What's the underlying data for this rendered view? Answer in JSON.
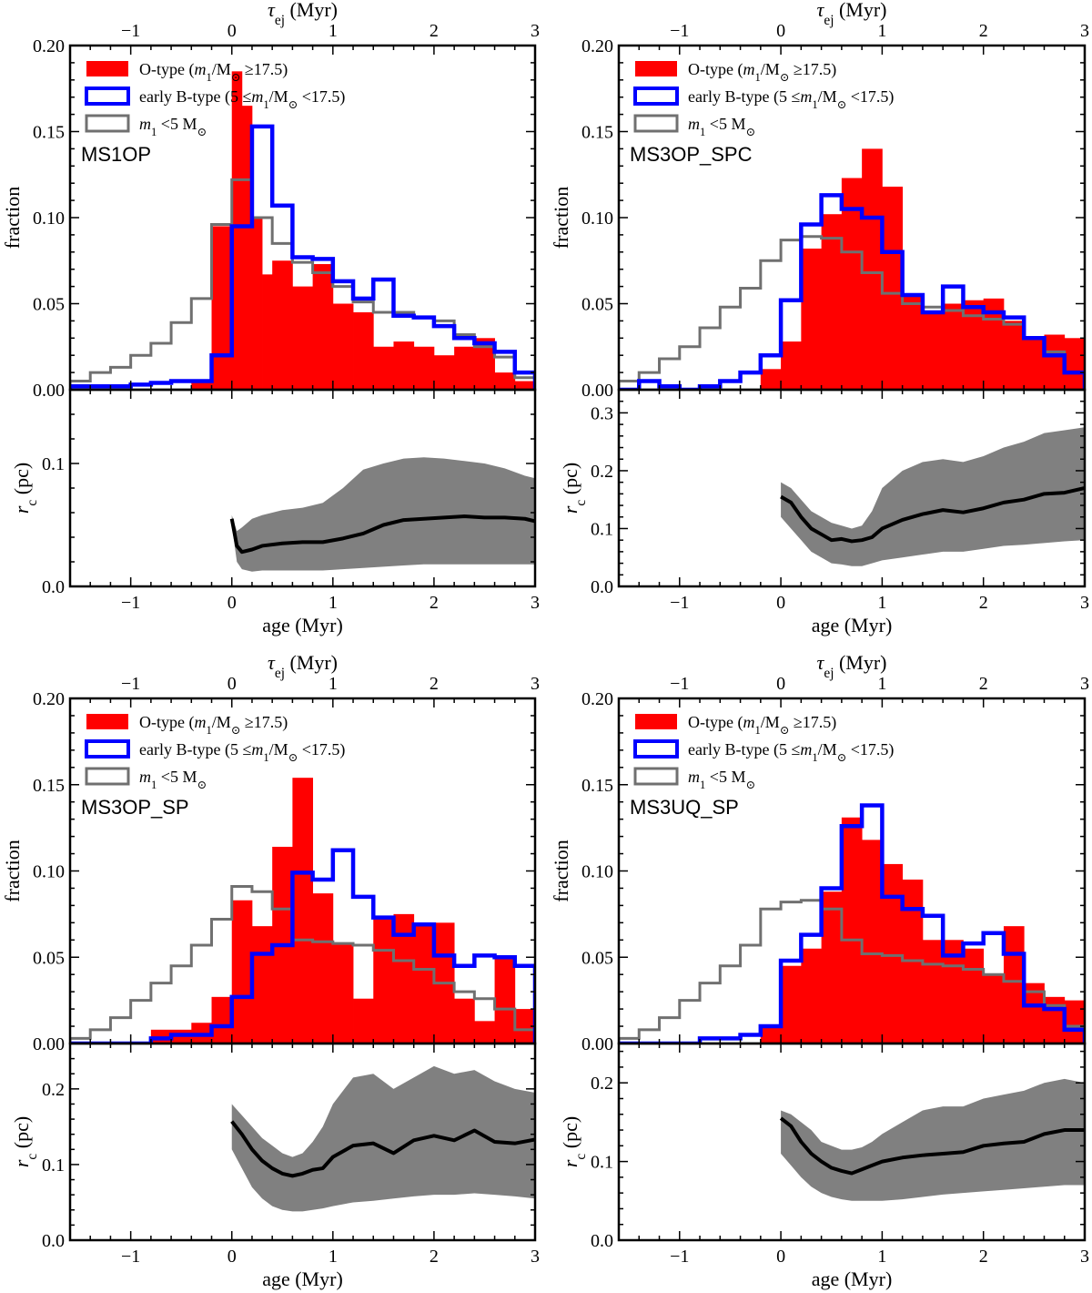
{
  "colors": {
    "o_type": "#ff0000",
    "early_b": "#0000ff",
    "low_mass": "#707070",
    "band": "#808080",
    "median": "#000000"
  },
  "legend": [
    {
      "key": "o_type",
      "label": "O-type (m₁/M⊙ ≥17.5)",
      "swatch": "filled"
    },
    {
      "key": "early_b",
      "label": "early B-type (5 ≤m₁/M⊙ <17.5)",
      "swatch": "outline"
    },
    {
      "key": "low_mass",
      "label": "m₁ <5 M⊙",
      "swatch": "outline"
    }
  ],
  "chart_data": [
    {
      "type": "step-histogram",
      "panel": "MS1OP",
      "title": "MS1OP",
      "xlabel": "age (Myr)",
      "x2label": "τej (Myr)",
      "ylabel": "fraction",
      "xlim": [
        -1.6,
        3.0
      ],
      "xticks": [
        -1,
        0,
        1,
        2,
        3
      ],
      "ylim": [
        0,
        0.2
      ],
      "yticks": [
        "0.00",
        "0.05",
        "0.10",
        "0.15",
        "0.20"
      ],
      "bin_edges": [
        -1.6,
        -1.4,
        -1.2,
        -1.0,
        -0.8,
        -0.6,
        -0.4,
        -0.2,
        0.0,
        0.2,
        0.4,
        0.6,
        0.8,
        1.0,
        1.2,
        1.4,
        1.6,
        1.8,
        2.0,
        2.2,
        2.4,
        2.6,
        2.8,
        3.0
      ],
      "o_edges": [
        -0.4,
        -0.2,
        0.0,
        0.1,
        0.2,
        0.3,
        0.4,
        0.6,
        0.8,
        1.0,
        1.2,
        1.4,
        1.6,
        1.8,
        2.0,
        2.2,
        2.4,
        2.6,
        2.8,
        3.0
      ],
      "series": [
        {
          "name": "O-type",
          "values": [
            0.005,
            0.095,
            0.185,
            0.165,
            0.1,
            0.067,
            0.075,
            0.06,
            0.073,
            0.05,
            0.045,
            0.025,
            0.028,
            0.025,
            0.02,
            0.025,
            0.03,
            0.01,
            0.005
          ]
        },
        {
          "name": "early B-type",
          "values": [
            0.002,
            0.002,
            0.002,
            0.003,
            0.004,
            0.005,
            0.005,
            0.02,
            0.095,
            0.153,
            0.107,
            0.077,
            0.076,
            0.063,
            0.053,
            0.064,
            0.043,
            0.042,
            0.037,
            0.03,
            0.027,
            0.022,
            0.01
          ]
        },
        {
          "name": "low mass",
          "values": [
            0.005,
            0.01,
            0.013,
            0.02,
            0.027,
            0.039,
            0.053,
            0.096,
            0.122,
            0.1,
            0.085,
            0.074,
            0.068,
            0.06,
            0.051,
            0.045,
            0.045,
            0.042,
            0.04,
            0.032,
            0.025,
            0.019,
            0.007
          ]
        }
      ],
      "rc": {
        "ylabel": "rc (pc)",
        "ylim": [
          0,
          0.16
        ],
        "yticks": [
          "0.0",
          "0.1"
        ],
        "x": [
          0.0,
          0.05,
          0.1,
          0.2,
          0.3,
          0.5,
          0.7,
          0.9,
          1.1,
          1.3,
          1.5,
          1.7,
          1.9,
          2.1,
          2.3,
          2.5,
          2.7,
          2.9,
          3.0
        ],
        "median": [
          0.055,
          0.033,
          0.028,
          0.03,
          0.033,
          0.035,
          0.036,
          0.036,
          0.039,
          0.043,
          0.05,
          0.054,
          0.055,
          0.056,
          0.057,
          0.056,
          0.056,
          0.055,
          0.053
        ],
        "upper": [
          0.058,
          0.045,
          0.048,
          0.055,
          0.058,
          0.062,
          0.064,
          0.068,
          0.08,
          0.095,
          0.1,
          0.104,
          0.105,
          0.104,
          0.102,
          0.1,
          0.096,
          0.09,
          0.088
        ],
        "lower": [
          0.05,
          0.02,
          0.014,
          0.012,
          0.013,
          0.013,
          0.013,
          0.013,
          0.014,
          0.015,
          0.016,
          0.017,
          0.018,
          0.018,
          0.018,
          0.018,
          0.018,
          0.018,
          0.018
        ]
      }
    },
    {
      "type": "step-histogram",
      "panel": "MS3OP_SPC",
      "title": "MS3OP_SPC",
      "xlabel": "age (Myr)",
      "x2label": "τej (Myr)",
      "ylabel": "fraction",
      "xlim": [
        -1.6,
        3.0
      ],
      "xticks": [
        -1,
        0,
        1,
        2,
        3
      ],
      "ylim": [
        0,
        0.2
      ],
      "yticks": [
        "0.00",
        "0.05",
        "0.10",
        "0.15",
        "0.20"
      ],
      "bin_edges": [
        -1.6,
        -1.4,
        -1.2,
        -1.0,
        -0.8,
        -0.6,
        -0.4,
        -0.2,
        0.0,
        0.2,
        0.4,
        0.6,
        0.8,
        1.0,
        1.2,
        1.4,
        1.6,
        1.8,
        2.0,
        2.2,
        2.4,
        2.6,
        2.8,
        3.0
      ],
      "o_edges": [
        -0.2,
        0.0,
        0.2,
        0.4,
        0.6,
        0.8,
        1.0,
        1.2,
        1.4,
        1.6,
        1.8,
        2.0,
        2.2,
        2.4,
        2.6,
        2.8,
        3.0
      ],
      "series": [
        {
          "name": "O-type",
          "values": [
            0.012,
            0.028,
            0.082,
            0.102,
            0.123,
            0.14,
            0.118,
            0.055,
            0.045,
            0.05,
            0.052,
            0.053,
            0.04,
            0.03,
            0.032,
            0.03
          ]
        },
        {
          "name": "early B-type",
          "values": [
            0.0,
            0.005,
            0.002,
            0.0,
            0.002,
            0.005,
            0.01,
            0.02,
            0.052,
            0.096,
            0.113,
            0.105,
            0.1,
            0.08,
            0.055,
            0.045,
            0.06,
            0.048,
            0.045,
            0.042,
            0.03,
            0.02,
            0.01
          ]
        },
        {
          "name": "low mass",
          "values": [
            0.005,
            0.01,
            0.018,
            0.025,
            0.036,
            0.048,
            0.059,
            0.075,
            0.087,
            0.089,
            0.088,
            0.08,
            0.068,
            0.056,
            0.05,
            0.048,
            0.046,
            0.043,
            0.041,
            0.038,
            0.03,
            0.022,
            0.01
          ]
        }
      ],
      "rc": {
        "ylabel": "rc (pc)",
        "ylim": [
          0,
          0.34
        ],
        "yticks": [
          "0.0",
          "0.1",
          "0.2",
          "0.3"
        ],
        "x": [
          0.0,
          0.1,
          0.2,
          0.3,
          0.4,
          0.5,
          0.6,
          0.7,
          0.8,
          0.9,
          1.0,
          1.2,
          1.4,
          1.6,
          1.8,
          2.0,
          2.2,
          2.4,
          2.6,
          2.8,
          3.0
        ],
        "median": [
          0.155,
          0.145,
          0.12,
          0.1,
          0.09,
          0.08,
          0.082,
          0.078,
          0.08,
          0.085,
          0.1,
          0.115,
          0.125,
          0.132,
          0.128,
          0.135,
          0.145,
          0.15,
          0.16,
          0.162,
          0.17
        ],
        "upper": [
          0.18,
          0.17,
          0.15,
          0.13,
          0.12,
          0.11,
          0.105,
          0.1,
          0.105,
          0.13,
          0.17,
          0.2,
          0.215,
          0.22,
          0.215,
          0.225,
          0.24,
          0.25,
          0.265,
          0.27,
          0.275
        ],
        "lower": [
          0.12,
          0.1,
          0.08,
          0.06,
          0.05,
          0.04,
          0.038,
          0.035,
          0.035,
          0.04,
          0.045,
          0.05,
          0.055,
          0.06,
          0.06,
          0.065,
          0.07,
          0.072,
          0.075,
          0.078,
          0.08
        ]
      }
    },
    {
      "type": "step-histogram",
      "panel": "MS3OP_SP",
      "title": "MS3OP_SP",
      "xlabel": "age (Myr)",
      "x2label": "τej (Myr)",
      "ylabel": "fraction",
      "xlim": [
        -1.6,
        3.0
      ],
      "xticks": [
        -1,
        0,
        1,
        2,
        3
      ],
      "ylim": [
        0,
        0.2
      ],
      "yticks": [
        "0.00",
        "0.05",
        "0.10",
        "0.15",
        "0.20"
      ],
      "bin_edges": [
        -1.6,
        -1.4,
        -1.2,
        -1.0,
        -0.8,
        -0.6,
        -0.4,
        -0.2,
        0.0,
        0.2,
        0.4,
        0.6,
        0.8,
        1.0,
        1.2,
        1.4,
        1.6,
        1.8,
        2.0,
        2.2,
        2.4,
        2.6,
        2.8,
        3.0
      ],
      "o_edges": [
        -0.8,
        -0.4,
        -0.2,
        0.0,
        0.2,
        0.4,
        0.6,
        0.8,
        1.0,
        1.2,
        1.4,
        1.6,
        1.8,
        2.2,
        2.4,
        2.6,
        2.8,
        3.0
      ],
      "series": [
        {
          "name": "O-type",
          "values": [
            0.008,
            0.012,
            0.027,
            0.083,
            0.068,
            0.114,
            0.154,
            0.087,
            0.058,
            0.026,
            0.073,
            0.075,
            0.07,
            0.026,
            0.013,
            0.05,
            0.02
          ]
        },
        {
          "name": "early B-type",
          "values": [
            0.0,
            0.0,
            0.0,
            0.0,
            0.003,
            0.005,
            0.005,
            0.01,
            0.027,
            0.052,
            0.057,
            0.099,
            0.095,
            0.112,
            0.085,
            0.073,
            0.063,
            0.069,
            0.051,
            0.045,
            0.051,
            0.05,
            0.045
          ]
        },
        {
          "name": "low mass",
          "values": [
            0.003,
            0.008,
            0.015,
            0.025,
            0.035,
            0.045,
            0.057,
            0.072,
            0.091,
            0.088,
            0.078,
            0.06,
            0.059,
            0.058,
            0.057,
            0.054,
            0.048,
            0.043,
            0.035,
            0.03,
            0.026,
            0.02,
            0.008
          ]
        }
      ],
      "rc": {
        "ylabel": "rc (pc)",
        "ylim": [
          0,
          0.26
        ],
        "yticks": [
          "0.0",
          "0.1",
          "0.2"
        ],
        "x": [
          0.0,
          0.1,
          0.2,
          0.3,
          0.4,
          0.5,
          0.6,
          0.7,
          0.8,
          0.9,
          1.0,
          1.2,
          1.4,
          1.6,
          1.8,
          2.0,
          2.2,
          2.4,
          2.6,
          2.8,
          3.0
        ],
        "median": [
          0.157,
          0.14,
          0.12,
          0.105,
          0.095,
          0.088,
          0.085,
          0.088,
          0.093,
          0.095,
          0.11,
          0.125,
          0.128,
          0.115,
          0.132,
          0.138,
          0.132,
          0.145,
          0.13,
          0.128,
          0.133
        ],
        "upper": [
          0.18,
          0.165,
          0.15,
          0.135,
          0.125,
          0.115,
          0.11,
          0.115,
          0.13,
          0.15,
          0.18,
          0.215,
          0.22,
          0.2,
          0.215,
          0.23,
          0.22,
          0.225,
          0.21,
          0.2,
          0.195
        ],
        "lower": [
          0.12,
          0.095,
          0.07,
          0.055,
          0.045,
          0.04,
          0.038,
          0.038,
          0.04,
          0.042,
          0.045,
          0.05,
          0.052,
          0.055,
          0.058,
          0.06,
          0.06,
          0.062,
          0.06,
          0.058,
          0.055
        ]
      }
    },
    {
      "type": "step-histogram",
      "panel": "MS3UQ_SP",
      "title": "MS3UQ_SP",
      "xlabel": "age (Myr)",
      "x2label": "τej (Myr)",
      "ylabel": "fraction",
      "xlim": [
        -1.6,
        3.0
      ],
      "xticks": [
        -1,
        0,
        1,
        2,
        3
      ],
      "ylim": [
        0,
        0.2
      ],
      "yticks": [
        "0.00",
        "0.05",
        "0.10",
        "0.15",
        "0.20"
      ],
      "bin_edges": [
        -1.6,
        -1.4,
        -1.2,
        -1.0,
        -0.8,
        -0.6,
        -0.4,
        -0.2,
        0.0,
        0.2,
        0.4,
        0.6,
        0.8,
        1.0,
        1.2,
        1.4,
        1.6,
        1.8,
        2.0,
        2.2,
        2.4,
        2.6,
        2.8,
        3.0
      ],
      "o_edges": [
        -0.2,
        0.0,
        0.2,
        0.4,
        0.6,
        0.8,
        1.0,
        1.2,
        1.4,
        1.6,
        1.8,
        2.0,
        2.2,
        2.4,
        2.6,
        2.8,
        3.0
      ],
      "series": [
        {
          "name": "O-type",
          "values": [
            0.01,
            0.045,
            0.055,
            0.088,
            0.131,
            0.118,
            0.104,
            0.095,
            0.06,
            0.06,
            0.055,
            0.04,
            0.068,
            0.035,
            0.027,
            0.025
          ]
        },
        {
          "name": "early B-type",
          "values": [
            0.0,
            0.0,
            0.0,
            0.0,
            0.003,
            0.003,
            0.005,
            0.01,
            0.048,
            0.063,
            0.09,
            0.126,
            0.138,
            0.085,
            0.078,
            0.074,
            0.051,
            0.058,
            0.064,
            0.052,
            0.022,
            0.02,
            0.008
          ]
        },
        {
          "name": "low mass",
          "values": [
            0.003,
            0.008,
            0.015,
            0.025,
            0.035,
            0.045,
            0.057,
            0.078,
            0.082,
            0.083,
            0.078,
            0.06,
            0.052,
            0.051,
            0.048,
            0.046,
            0.045,
            0.043,
            0.04,
            0.036,
            0.03,
            0.022,
            0.01
          ]
        }
      ],
      "rc": {
        "ylabel": "rc (pc)",
        "ylim": [
          0,
          0.25
        ],
        "yticks": [
          "0.0",
          "0.1",
          "0.2"
        ],
        "x": [
          0.0,
          0.1,
          0.2,
          0.3,
          0.4,
          0.5,
          0.6,
          0.7,
          0.8,
          0.9,
          1.0,
          1.2,
          1.4,
          1.6,
          1.8,
          2.0,
          2.2,
          2.4,
          2.6,
          2.8,
          3.0
        ],
        "median": [
          0.155,
          0.145,
          0.125,
          0.11,
          0.1,
          0.092,
          0.088,
          0.085,
          0.09,
          0.095,
          0.1,
          0.105,
          0.108,
          0.11,
          0.112,
          0.12,
          0.123,
          0.125,
          0.135,
          0.14,
          0.14
        ],
        "upper": [
          0.165,
          0.16,
          0.15,
          0.14,
          0.125,
          0.12,
          0.115,
          0.115,
          0.118,
          0.125,
          0.135,
          0.15,
          0.165,
          0.17,
          0.17,
          0.18,
          0.185,
          0.19,
          0.2,
          0.205,
          0.2
        ],
        "lower": [
          0.11,
          0.095,
          0.08,
          0.068,
          0.06,
          0.055,
          0.052,
          0.05,
          0.05,
          0.05,
          0.05,
          0.052,
          0.055,
          0.058,
          0.06,
          0.062,
          0.064,
          0.066,
          0.068,
          0.07,
          0.07
        ]
      }
    }
  ]
}
